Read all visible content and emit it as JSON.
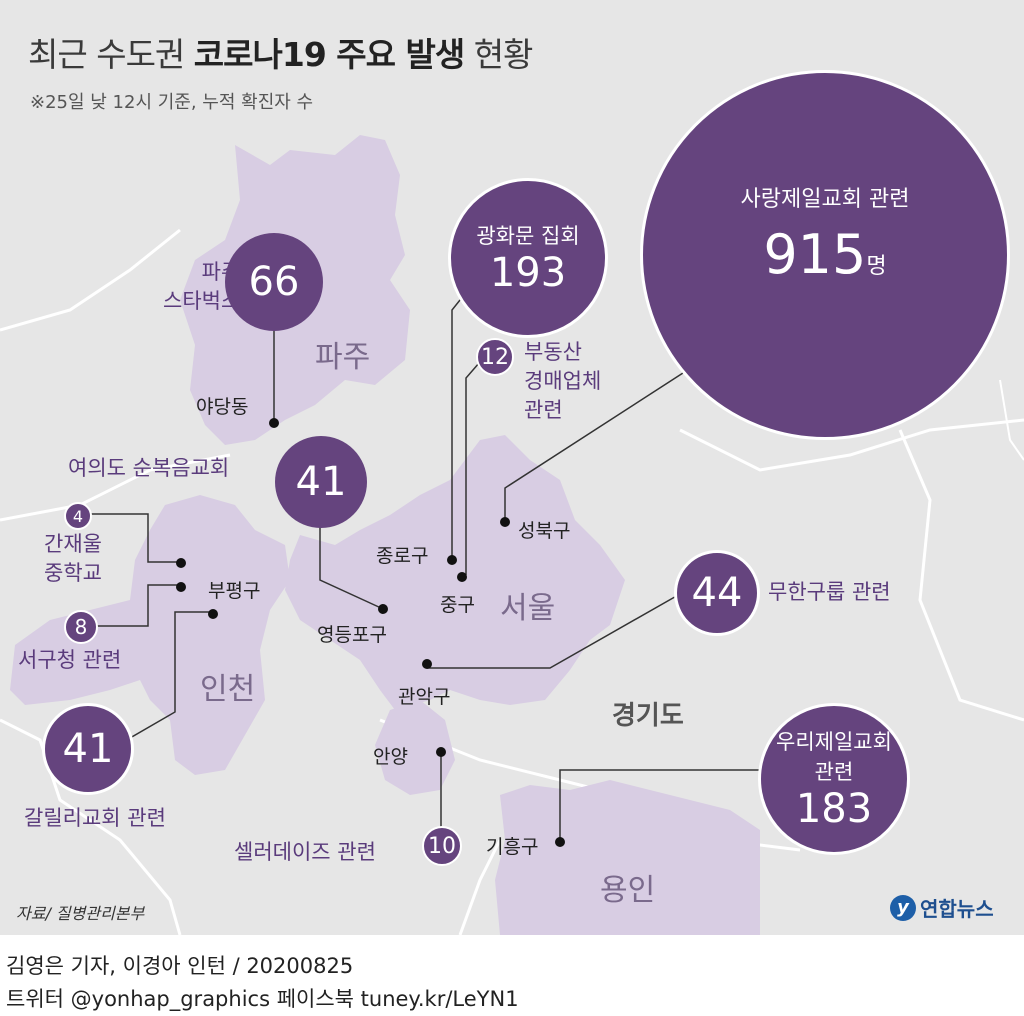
{
  "title": {
    "normal1": "최근 수도권 ",
    "bold": "코로나19 주요 발생",
    "normal2": " 현황"
  },
  "subtitle": "※25일 낮 12시 기준, 누적 확진자 수",
  "regions": {
    "paju": "파주",
    "seoul": "서울",
    "incheon": "인천",
    "gyeonggi": "경기도",
    "yongin": "용인"
  },
  "places": {
    "yadang": "야당동",
    "jongno": "종로구",
    "seongbuk": "성북구",
    "junggu": "중구",
    "bupyeong": "부평구",
    "yeongdeungpo": "영등포구",
    "gwanak": "관악구",
    "anyang": "안양",
    "giheung": "기흥구"
  },
  "clusters": {
    "paju_starbucks": {
      "label_line1": "파주",
      "label_line2": "스타벅스",
      "count": "66"
    },
    "gwanghwamun": {
      "label": "광화문 집회",
      "count": "193"
    },
    "sarang": {
      "label": "사랑제일교회 관련",
      "count": "915",
      "unit": "명"
    },
    "budongsan": {
      "count": "12",
      "line1": "부동산",
      "line2": "경매업체",
      "line3": "관련"
    },
    "yeouido": {
      "label": "여의도 순복음교회",
      "count": "41"
    },
    "ganjae": {
      "count": "4",
      "line1": "간재울",
      "line2": "중학교"
    },
    "seogu": {
      "count": "8",
      "label": "서구청 관련"
    },
    "galilee": {
      "count": "41",
      "label": "갈릴리교회 관련"
    },
    "musung": {
      "count": "44",
      "label": "무한구룹 관련"
    },
    "woori": {
      "line1": "우리제일교회",
      "line2": "관련",
      "count": "183"
    },
    "cellerdays": {
      "label": "셀러데이즈 관련",
      "count": "10"
    }
  },
  "source": "자료/ 질병관리본부",
  "logo": {
    "mark": "y",
    "text": "연합뉴스"
  },
  "footer": {
    "credit": "김영은 기자, 이경아 인턴 / 20200825",
    "social": "트위터 @yonhap_graphics  페이스북 tuney.kr/LeYN1"
  },
  "colors": {
    "bubble": "#65447e",
    "region_fill": "#d8cde3",
    "region_fill_dark": "#cbbedb",
    "map_bg": "#e6e6e6",
    "label": "#5a3b7c"
  }
}
